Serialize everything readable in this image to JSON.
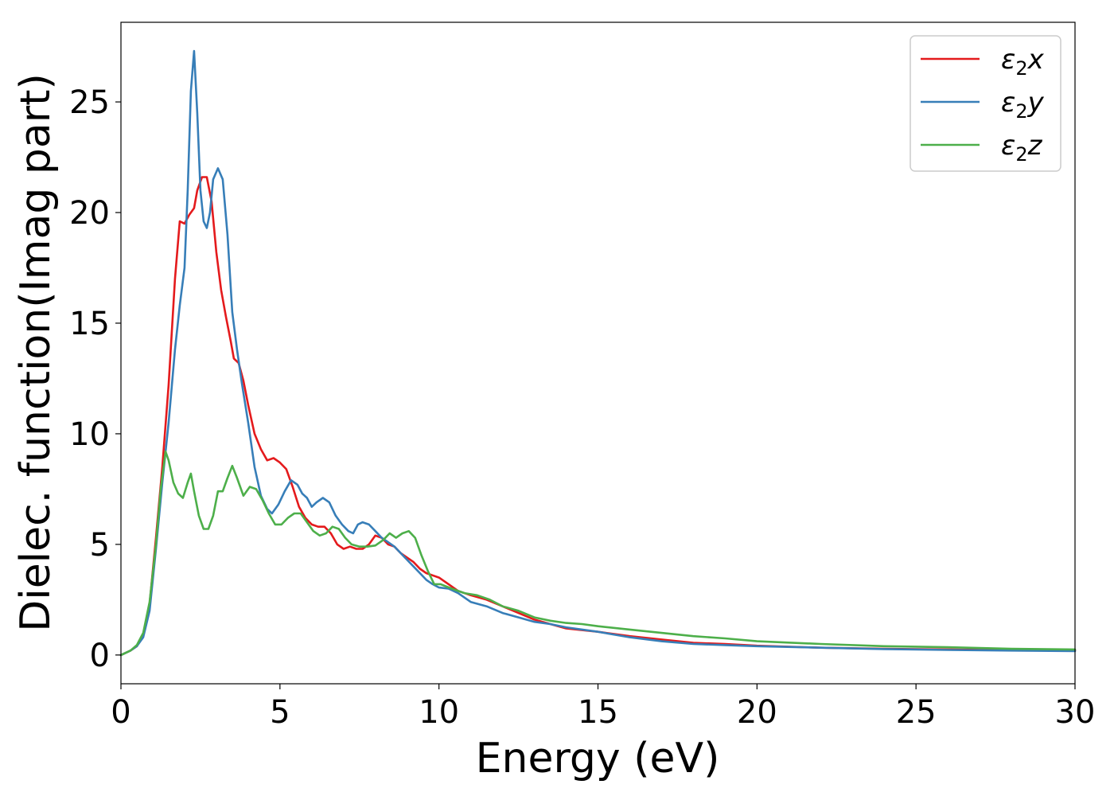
{
  "chart_data": {
    "type": "line",
    "title": "",
    "xlabel": "Energy (eV)",
    "ylabel": "Dielec. function(Imag part)",
    "xlim": [
      0,
      30
    ],
    "ylim": [
      -1.3,
      28.6
    ],
    "xticks": [
      0,
      5,
      10,
      15,
      20,
      25,
      30
    ],
    "yticks": [
      0,
      5,
      10,
      15,
      20,
      25
    ],
    "grid": false,
    "legend_position": "top-right",
    "series": [
      {
        "name": "ε₂x",
        "legend_base": "ε",
        "legend_sub": "2",
        "legend_suffix": "x",
        "color": "#e41a1c",
        "points": [
          [
            0,
            0
          ],
          [
            0.3,
            0.2
          ],
          [
            0.5,
            0.4
          ],
          [
            0.7,
            0.9
          ],
          [
            0.9,
            2.3
          ],
          [
            1.1,
            5.3
          ],
          [
            1.3,
            8.5
          ],
          [
            1.5,
            12.2
          ],
          [
            1.7,
            17.0
          ],
          [
            1.85,
            19.6
          ],
          [
            2.0,
            19.5
          ],
          [
            2.15,
            19.9
          ],
          [
            2.3,
            20.2
          ],
          [
            2.4,
            21.0
          ],
          [
            2.55,
            21.6
          ],
          [
            2.7,
            21.6
          ],
          [
            2.85,
            20.5
          ],
          [
            3.0,
            18.2
          ],
          [
            3.15,
            16.5
          ],
          [
            3.3,
            15.3
          ],
          [
            3.45,
            14.2
          ],
          [
            3.55,
            13.4
          ],
          [
            3.7,
            13.2
          ],
          [
            3.85,
            12.4
          ],
          [
            4.0,
            11.3
          ],
          [
            4.2,
            10.0
          ],
          [
            4.4,
            9.3
          ],
          [
            4.6,
            8.8
          ],
          [
            4.8,
            8.9
          ],
          [
            5.0,
            8.7
          ],
          [
            5.2,
            8.4
          ],
          [
            5.4,
            7.6
          ],
          [
            5.6,
            6.7
          ],
          [
            5.8,
            6.2
          ],
          [
            6.0,
            5.9
          ],
          [
            6.2,
            5.8
          ],
          [
            6.4,
            5.8
          ],
          [
            6.6,
            5.5
          ],
          [
            6.8,
            5.0
          ],
          [
            7.0,
            4.8
          ],
          [
            7.2,
            4.9
          ],
          [
            7.4,
            4.8
          ],
          [
            7.6,
            4.8
          ],
          [
            7.8,
            5.0
          ],
          [
            8.0,
            5.4
          ],
          [
            8.2,
            5.3
          ],
          [
            8.4,
            5.0
          ],
          [
            8.6,
            4.9
          ],
          [
            8.8,
            4.6
          ],
          [
            9.0,
            4.4
          ],
          [
            9.2,
            4.2
          ],
          [
            9.4,
            3.9
          ],
          [
            9.6,
            3.7
          ],
          [
            9.8,
            3.6
          ],
          [
            10.0,
            3.5
          ],
          [
            10.3,
            3.2
          ],
          [
            10.6,
            2.9
          ],
          [
            11.0,
            2.7
          ],
          [
            11.5,
            2.5
          ],
          [
            12.0,
            2.2
          ],
          [
            12.5,
            1.9
          ],
          [
            13.0,
            1.6
          ],
          [
            13.5,
            1.4
          ],
          [
            14.0,
            1.2
          ],
          [
            15.0,
            1.05
          ],
          [
            16.0,
            0.85
          ],
          [
            17.0,
            0.7
          ],
          [
            18.0,
            0.55
          ],
          [
            19.0,
            0.5
          ],
          [
            20.0,
            0.42
          ],
          [
            22.0,
            0.33
          ],
          [
            24.0,
            0.28
          ],
          [
            26.0,
            0.25
          ],
          [
            28.0,
            0.22
          ],
          [
            30.0,
            0.2
          ]
        ]
      },
      {
        "name": "ε₂y",
        "legend_base": "ε",
        "legend_sub": "2",
        "legend_suffix": "y",
        "color": "#377eb8",
        "points": [
          [
            0,
            0
          ],
          [
            0.3,
            0.2
          ],
          [
            0.5,
            0.4
          ],
          [
            0.7,
            0.8
          ],
          [
            0.9,
            2.0
          ],
          [
            1.1,
            4.8
          ],
          [
            1.3,
            7.8
          ],
          [
            1.5,
            10.5
          ],
          [
            1.7,
            13.8
          ],
          [
            1.85,
            15.8
          ],
          [
            2.0,
            17.5
          ],
          [
            2.1,
            21.0
          ],
          [
            2.2,
            25.5
          ],
          [
            2.3,
            27.3
          ],
          [
            2.4,
            24.5
          ],
          [
            2.5,
            21.0
          ],
          [
            2.6,
            19.6
          ],
          [
            2.7,
            19.3
          ],
          [
            2.8,
            20.0
          ],
          [
            2.9,
            21.5
          ],
          [
            3.05,
            22.0
          ],
          [
            3.2,
            21.5
          ],
          [
            3.35,
            19.0
          ],
          [
            3.5,
            15.5
          ],
          [
            3.65,
            13.8
          ],
          [
            3.8,
            12.3
          ],
          [
            4.0,
            10.5
          ],
          [
            4.2,
            8.5
          ],
          [
            4.4,
            7.2
          ],
          [
            4.6,
            6.6
          ],
          [
            4.75,
            6.4
          ],
          [
            4.95,
            6.8
          ],
          [
            5.15,
            7.4
          ],
          [
            5.35,
            7.9
          ],
          [
            5.55,
            7.7
          ],
          [
            5.7,
            7.3
          ],
          [
            5.85,
            7.1
          ],
          [
            6.0,
            6.7
          ],
          [
            6.15,
            6.9
          ],
          [
            6.35,
            7.1
          ],
          [
            6.55,
            6.9
          ],
          [
            6.75,
            6.3
          ],
          [
            6.95,
            5.9
          ],
          [
            7.15,
            5.6
          ],
          [
            7.3,
            5.5
          ],
          [
            7.45,
            5.9
          ],
          [
            7.6,
            6.0
          ],
          [
            7.8,
            5.9
          ],
          [
            8.0,
            5.6
          ],
          [
            8.2,
            5.3
          ],
          [
            8.4,
            5.1
          ],
          [
            8.6,
            4.9
          ],
          [
            8.8,
            4.6
          ],
          [
            9.0,
            4.3
          ],
          [
            9.2,
            4.0
          ],
          [
            9.4,
            3.7
          ],
          [
            9.6,
            3.4
          ],
          [
            9.8,
            3.2
          ],
          [
            10.0,
            3.05
          ],
          [
            10.3,
            3.0
          ],
          [
            10.6,
            2.8
          ],
          [
            11.0,
            2.4
          ],
          [
            11.5,
            2.2
          ],
          [
            12.0,
            1.9
          ],
          [
            12.5,
            1.7
          ],
          [
            13.0,
            1.5
          ],
          [
            13.5,
            1.4
          ],
          [
            14.0,
            1.25
          ],
          [
            15.0,
            1.05
          ],
          [
            16.0,
            0.8
          ],
          [
            17.0,
            0.62
          ],
          [
            18.0,
            0.5
          ],
          [
            19.0,
            0.45
          ],
          [
            20.0,
            0.4
          ],
          [
            22.0,
            0.33
          ],
          [
            24.0,
            0.27
          ],
          [
            26.0,
            0.23
          ],
          [
            28.0,
            0.2
          ],
          [
            30.0,
            0.18
          ]
        ]
      },
      {
        "name": "ε₂z",
        "legend_base": "ε",
        "legend_sub": "2",
        "legend_suffix": "z",
        "color": "#4daf4a",
        "points": [
          [
            0,
            0
          ],
          [
            0.3,
            0.2
          ],
          [
            0.5,
            0.45
          ],
          [
            0.7,
            1.0
          ],
          [
            0.9,
            2.4
          ],
          [
            1.1,
            5.0
          ],
          [
            1.25,
            7.5
          ],
          [
            1.4,
            9.2
          ],
          [
            1.5,
            8.8
          ],
          [
            1.65,
            7.8
          ],
          [
            1.8,
            7.3
          ],
          [
            1.95,
            7.1
          ],
          [
            2.1,
            7.8
          ],
          [
            2.2,
            8.2
          ],
          [
            2.3,
            7.4
          ],
          [
            2.45,
            6.3
          ],
          [
            2.6,
            5.7
          ],
          [
            2.75,
            5.7
          ],
          [
            2.9,
            6.3
          ],
          [
            3.05,
            7.4
          ],
          [
            3.2,
            7.4
          ],
          [
            3.35,
            8.0
          ],
          [
            3.5,
            8.55
          ],
          [
            3.65,
            8.0
          ],
          [
            3.85,
            7.2
          ],
          [
            4.05,
            7.6
          ],
          [
            4.25,
            7.5
          ],
          [
            4.45,
            7.0
          ],
          [
            4.65,
            6.4
          ],
          [
            4.85,
            5.9
          ],
          [
            5.05,
            5.9
          ],
          [
            5.25,
            6.2
          ],
          [
            5.45,
            6.4
          ],
          [
            5.65,
            6.4
          ],
          [
            5.85,
            6.0
          ],
          [
            6.05,
            5.6
          ],
          [
            6.25,
            5.4
          ],
          [
            6.45,
            5.5
          ],
          [
            6.65,
            5.8
          ],
          [
            6.85,
            5.7
          ],
          [
            7.05,
            5.3
          ],
          [
            7.25,
            5.0
          ],
          [
            7.5,
            4.9
          ],
          [
            7.75,
            4.9
          ],
          [
            8.0,
            4.95
          ],
          [
            8.25,
            5.2
          ],
          [
            8.45,
            5.5
          ],
          [
            8.65,
            5.3
          ],
          [
            8.85,
            5.5
          ],
          [
            9.05,
            5.6
          ],
          [
            9.25,
            5.3
          ],
          [
            9.45,
            4.5
          ],
          [
            9.65,
            3.8
          ],
          [
            9.85,
            3.2
          ],
          [
            10.05,
            3.2
          ],
          [
            10.4,
            3.0
          ],
          [
            10.8,
            2.8
          ],
          [
            11.2,
            2.7
          ],
          [
            11.6,
            2.5
          ],
          [
            12.0,
            2.2
          ],
          [
            12.5,
            2.0
          ],
          [
            13.0,
            1.7
          ],
          [
            13.5,
            1.55
          ],
          [
            14.0,
            1.45
          ],
          [
            14.5,
            1.4
          ],
          [
            15.0,
            1.3
          ],
          [
            16.0,
            1.15
          ],
          [
            17.0,
            1.0
          ],
          [
            18.0,
            0.85
          ],
          [
            19.0,
            0.75
          ],
          [
            20.0,
            0.62
          ],
          [
            22.0,
            0.5
          ],
          [
            24.0,
            0.4
          ],
          [
            26.0,
            0.35
          ],
          [
            28.0,
            0.28
          ],
          [
            30.0,
            0.25
          ]
        ]
      }
    ]
  }
}
